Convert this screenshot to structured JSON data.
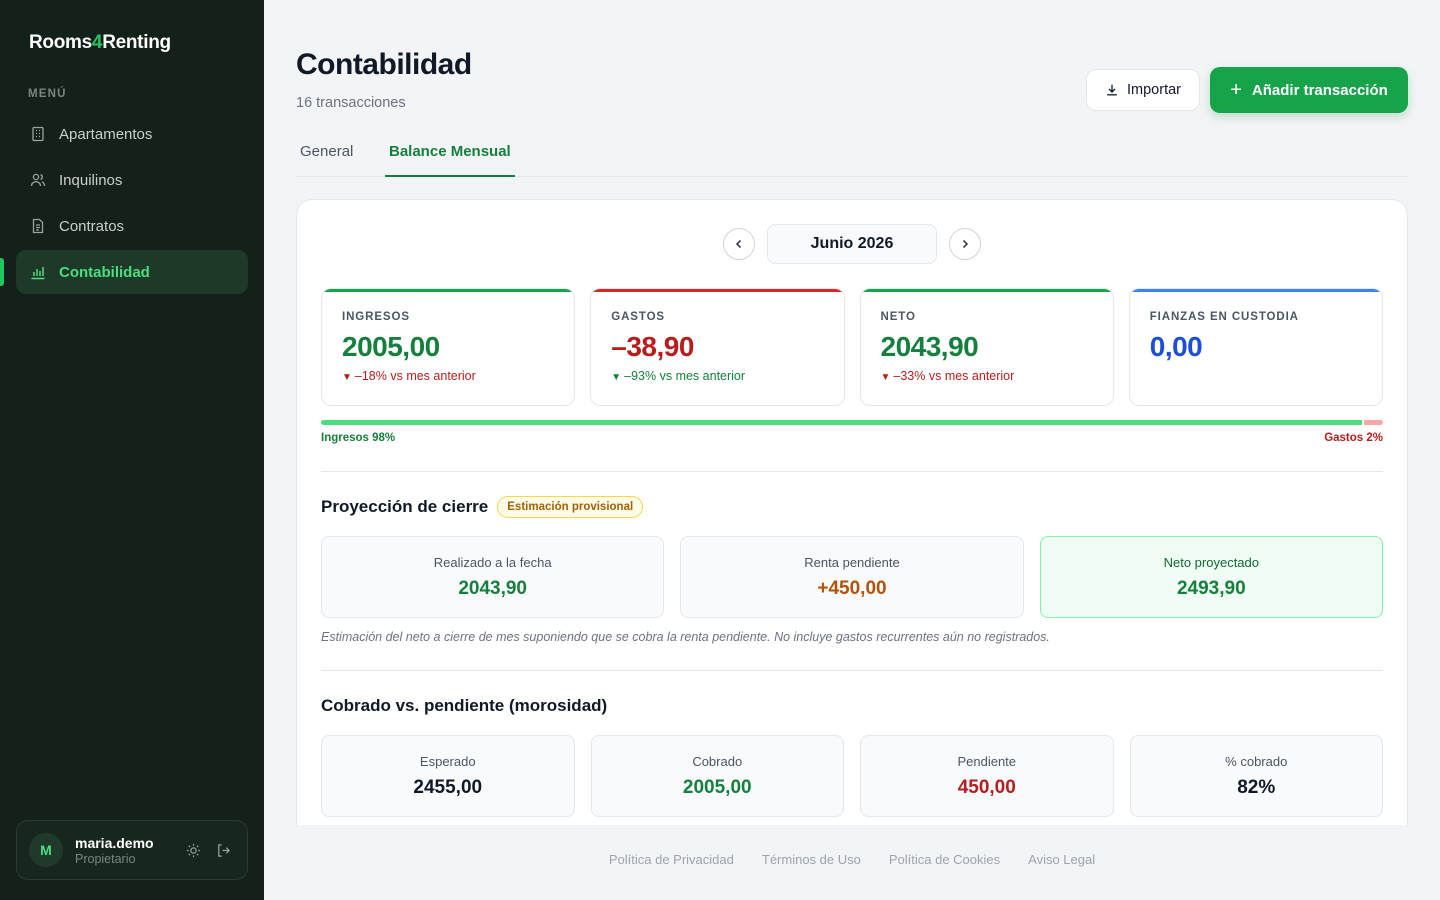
{
  "brand": {
    "part1": "Rooms",
    "part2": "4",
    "part3": "Renting"
  },
  "sidebar": {
    "menu_label": "MENÚ",
    "items": [
      {
        "label": "Apartamentos",
        "icon": "building-icon"
      },
      {
        "label": "Inquilinos",
        "icon": "users-icon"
      },
      {
        "label": "Contratos",
        "icon": "document-icon"
      },
      {
        "label": "Contabilidad",
        "icon": "bar-chart-icon",
        "active": true
      }
    ],
    "user": {
      "initial": "M",
      "name": "maria.demo",
      "role": "Propietario"
    }
  },
  "header": {
    "title": "Contabilidad",
    "subtitle": "16 transacciones",
    "import_label": "Importar",
    "add_label": "Añadir transacción"
  },
  "tabs": [
    {
      "label": "General",
      "active": false
    },
    {
      "label": "Balance Mensual",
      "active": true
    }
  ],
  "month": {
    "label": "Junio 2026"
  },
  "kpis": [
    {
      "label": "INGRESOS",
      "value": "2005,00",
      "delta": "–18% vs mes anterior",
      "color": "#15803d"
    },
    {
      "label": "GASTOS",
      "value": "–38,90",
      "delta": "–93% vs mes anterior",
      "color": "#b91c1c"
    },
    {
      "label": "NETO",
      "value": "2043,90",
      "delta": "–33% vs mes anterior",
      "color": "#15803d"
    },
    {
      "label": "FIANZAS EN CUSTODIA",
      "value": "0,00",
      "delta": "",
      "color": "#1d4ed8"
    }
  ],
  "ratio": {
    "income_share": 0.98,
    "income_label": "Ingresos 98%",
    "expense_label": "Gastos 2%"
  },
  "projection": {
    "title": "Proyección de cierre",
    "badge": "Estimación provisional",
    "cards": [
      {
        "label": "Realizado a la fecha",
        "value": "2043,90"
      },
      {
        "label": "Renta pendiente",
        "value": "+450,00"
      },
      {
        "label": "Neto proyectado",
        "value": "2493,90"
      }
    ],
    "note": "Estimación del neto a cierre de mes suponiendo que se cobra la renta pendiente. No incluye gastos recurrentes aún no registrados."
  },
  "collections": {
    "title": "Cobrado vs. pendiente (morosidad)",
    "cards": [
      {
        "label": "Esperado",
        "value": "2455,00"
      },
      {
        "label": "Cobrado",
        "value": "2005,00"
      },
      {
        "label": "Pendiente",
        "value": "450,00"
      },
      {
        "label": "% cobrado",
        "value": "82%"
      }
    ]
  },
  "footer": {
    "links": [
      "Política de Privacidad",
      "Términos de Uso",
      "Política de Cookies",
      "Aviso Legal"
    ]
  }
}
